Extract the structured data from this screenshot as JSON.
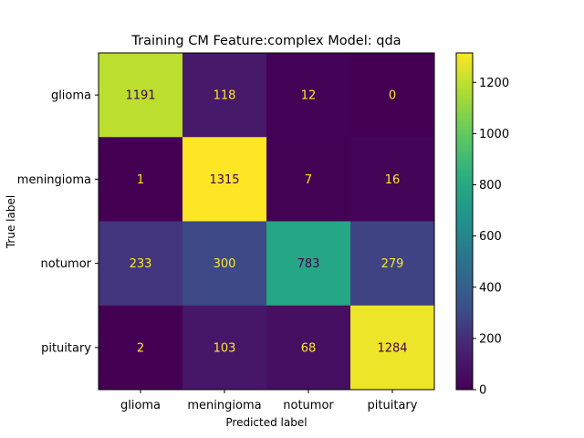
{
  "chart_data": {
    "type": "heatmap",
    "title": "Training CM Feature:complex Model: qda",
    "xlabel": "Predicted label",
    "ylabel": "True label",
    "x_categories": [
      "glioma",
      "meningioma",
      "notumor",
      "pituitary"
    ],
    "y_categories": [
      "glioma",
      "meningioma",
      "notumor",
      "pituitary"
    ],
    "values": [
      [
        1191,
        118,
        12,
        0
      ],
      [
        1,
        1315,
        7,
        16
      ],
      [
        233,
        300,
        783,
        279
      ],
      [
        2,
        103,
        68,
        1284
      ]
    ],
    "colormap": "viridis",
    "colorbar": {
      "min": 0,
      "max": 1315,
      "ticks": [
        0,
        200,
        400,
        600,
        800,
        1000,
        1200
      ]
    },
    "text_colors": {
      "on_dark": "#fde725",
      "on_light": "#440154"
    }
  }
}
